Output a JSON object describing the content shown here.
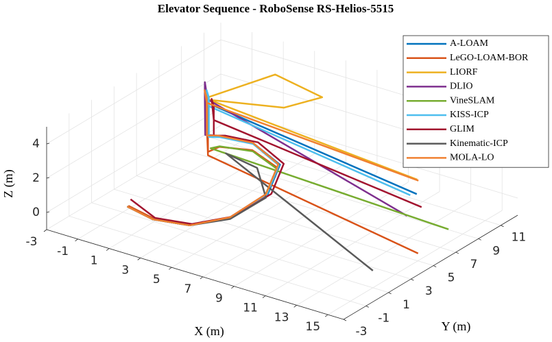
{
  "chart_data": {
    "type": "line3d",
    "title": "Elevator Sequence - RoboSense RS-Helios-5515",
    "x_label": "X (m)",
    "y_label": "Y (m)",
    "z_label": "Z (m)",
    "xlim": [
      -3,
      16
    ],
    "ylim": [
      -3,
      12.5
    ],
    "zlim": [
      -1,
      5
    ],
    "xticks": [
      -3,
      -1,
      1,
      3,
      5,
      7,
      9,
      11,
      13,
      15
    ],
    "yticks": [
      -3,
      -1,
      1,
      3,
      5,
      7,
      9,
      11
    ],
    "zticks": [
      0,
      2,
      4
    ],
    "grid": true,
    "legend": "upper right",
    "series": [
      {
        "name": "A-LOAM",
        "color": "#0072BD",
        "x": [
          0,
          2,
          4,
          5.5,
          6.1,
          5.1,
          3,
          1.6,
          1.6,
          1.6,
          1.1,
          1.6,
          16.3
        ],
        "y": [
          0,
          -0.5,
          0,
          1.5,
          4,
          6.5,
          7,
          6,
          5,
          5,
          5.5,
          5,
          3.1
        ],
        "z": [
          0,
          0,
          0,
          0.3,
          0.8,
          1.3,
          1.8,
          2.2,
          2.6,
          4.8,
          4.9,
          4.5,
          4
        ]
      },
      {
        "name": "LeGO-LOAM-BOR",
        "color": "#D95319",
        "x": [
          0,
          2,
          4,
          5.4,
          5.9,
          4.9,
          2.9,
          1.5,
          1.5,
          1.5,
          1,
          1.5,
          15.7
        ],
        "y": [
          0.1,
          -0.4,
          0.1,
          1.6,
          4.1,
          6.6,
          7.1,
          6.1,
          5.1,
          5.1,
          5.6,
          5.1,
          4.05
        ],
        "z": [
          0,
          0,
          0,
          0.2,
          0.6,
          1,
          1.3,
          1.5,
          1.6,
          4.2,
          4.3,
          1.4,
          0
        ]
      },
      {
        "name": "LIORF",
        "color": "#EDB120",
        "x": [
          0,
          2,
          4,
          5.5,
          6,
          5,
          3,
          1.5,
          1.5,
          1.5,
          3,
          6,
          5,
          1.5,
          15.9
        ],
        "y": [
          0,
          -0.5,
          0,
          1.5,
          4,
          6.5,
          7,
          6,
          5,
          5,
          9,
          9,
          7,
          5.2,
          3.7
        ],
        "z": [
          0,
          0,
          0,
          0.3,
          0.8,
          1.3,
          1.8,
          2.2,
          2.6,
          4.8,
          5,
          4.5,
          4.4,
          4.6,
          4.5
        ]
      },
      {
        "name": "DLIO",
        "color": "#7E2F8E",
        "x": [
          0,
          2,
          4,
          5.5,
          6,
          5,
          3,
          1.5,
          1.4,
          1.3,
          0.8,
          1.4,
          15.6
        ],
        "y": [
          0,
          -0.5,
          0,
          1.5,
          4,
          6.5,
          7,
          6,
          5,
          5.1,
          5.8,
          5.2,
          3.2
        ],
        "z": [
          0,
          0,
          0,
          0.3,
          0.8,
          1.3,
          1.8,
          2.2,
          2.6,
          5,
          5.2,
          4.6,
          2.5
        ]
      },
      {
        "name": "VineSLAM",
        "color": "#77AC30",
        "x": [
          0,
          2,
          4,
          5.4,
          5.9,
          4.9,
          3,
          1.6,
          1.6,
          16.5
        ],
        "y": [
          0,
          -0.5,
          0,
          1.5,
          4,
          6.5,
          7,
          6,
          5.2,
          5.65
        ],
        "z": [
          0,
          0,
          0,
          0.2,
          0.6,
          1,
          1.3,
          1.6,
          1.8,
          1
        ]
      },
      {
        "name": "KISS-ICP",
        "color": "#4DBEEE",
        "x": [
          0,
          2,
          4,
          5.6,
          6.1,
          5.1,
          3.1,
          1.7,
          1.7,
          1.7,
          1.2,
          1.7,
          16.1
        ],
        "y": [
          0,
          -0.5,
          0,
          1.4,
          3.9,
          6.4,
          6.9,
          5.9,
          4.9,
          4.9,
          5.4,
          4.9,
          2.8
        ],
        "z": [
          0,
          0,
          0,
          0.3,
          0.8,
          1.3,
          1.8,
          2.2,
          2.6,
          4.9,
          5,
          4.4,
          4
        ]
      },
      {
        "name": "GLIM",
        "color": "#A2142F",
        "x": [
          0,
          2,
          4,
          5.6,
          6.2,
          5.2,
          3.2,
          1.8,
          1.8,
          1.8,
          1.3,
          1.8,
          15.6
        ],
        "y": [
          0.3,
          -0.3,
          0.2,
          1.7,
          4.2,
          6.7,
          7.2,
          6.2,
          5.2,
          5.2,
          5.7,
          5.2,
          4.5
        ],
        "z": [
          0.3,
          0,
          0,
          0.3,
          0.8,
          1.3,
          1.8,
          2.2,
          2.6,
          4.3,
          4.4,
          3.5,
          2.5
        ]
      },
      {
        "name": "Kinematic-ICP",
        "color": "#5a5a5a",
        "x": [
          0,
          2,
          4,
          5.5,
          6,
          4,
          2,
          15
        ],
        "y": [
          0,
          -0.5,
          0,
          1.5,
          4,
          6,
          6,
          1
        ],
        "z": [
          0,
          0,
          0,
          0.2,
          0.6,
          1,
          1.3,
          0
        ]
      },
      {
        "name": "MOLA-LO",
        "color": "#F08030",
        "x": [
          0,
          2,
          4,
          5.5,
          6,
          5,
          3,
          1.5,
          1.5,
          1.5,
          1,
          1.5,
          15.9
        ],
        "y": [
          0,
          -0.5,
          0,
          1.5,
          4,
          6.5,
          7,
          6,
          5,
          5,
          5.5,
          5,
          3.8
        ],
        "z": [
          0,
          0,
          0,
          0.3,
          0.8,
          1.3,
          1.8,
          2.2,
          2.6,
          4.8,
          4.9,
          4.5,
          4.4
        ]
      }
    ]
  }
}
